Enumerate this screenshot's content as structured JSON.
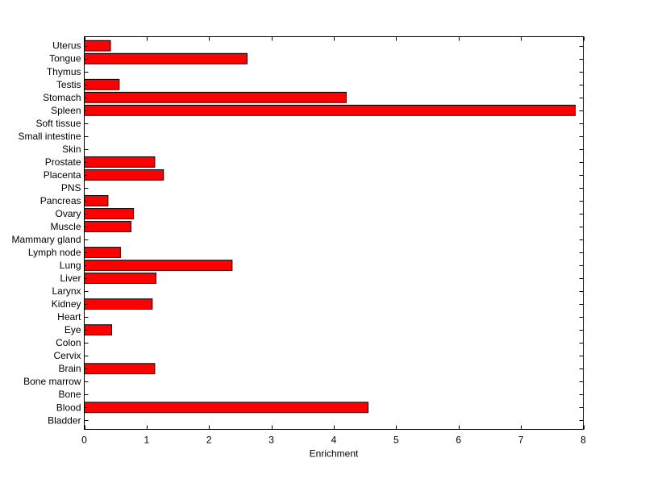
{
  "chart_data": {
    "type": "bar",
    "orientation": "horizontal",
    "title": "",
    "xlabel": "Enrichment",
    "ylabel": "",
    "xlim": [
      0,
      8
    ],
    "xticks": [
      0,
      1,
      2,
      3,
      4,
      5,
      6,
      7,
      8
    ],
    "grid": false,
    "legend": "none",
    "bar_color": "#ff0000",
    "categories": [
      "Bladder",
      "Blood",
      "Bone",
      "Bone marrow",
      "Brain",
      "Cervix",
      "Colon",
      "Eye",
      "Heart",
      "Kidney",
      "Larynx",
      "Liver",
      "Lung",
      "Lymph node",
      "Mammary gland",
      "Muscle",
      "Ovary",
      "Pancreas",
      "PNS",
      "Placenta",
      "Prostate",
      "Skin",
      "Small intestine",
      "Soft tissue",
      "Spleen",
      "Stomach",
      "Testis",
      "Thymus",
      "Tongue",
      "Uterus"
    ],
    "values": [
      0,
      4.55,
      0,
      0,
      1.13,
      0,
      0,
      0.44,
      0,
      1.09,
      0,
      1.15,
      2.37,
      0.58,
      0,
      0.75,
      0.79,
      0.38,
      0,
      1.27,
      1.13,
      0,
      0,
      0,
      7.87,
      4.2,
      0.56,
      0,
      2.61,
      0.42
    ]
  }
}
